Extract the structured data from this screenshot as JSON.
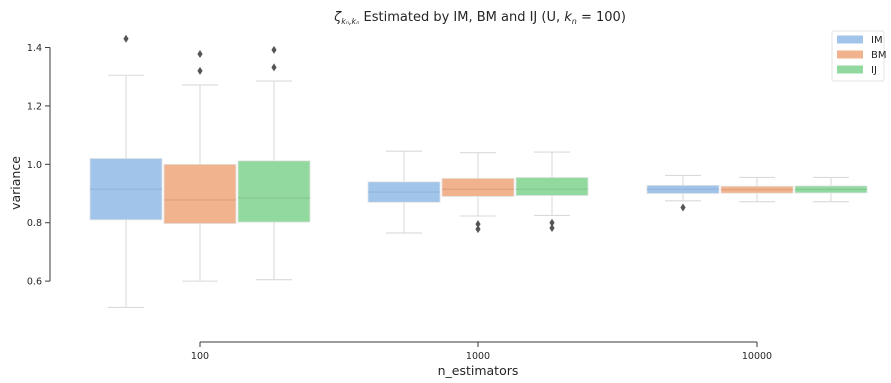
{
  "chart_data": {
    "type": "boxplot",
    "title": "ζ_{k_n,k_n} Estimated by IM, BM and IJ (U, k_n = 100)",
    "title_parts": {
      "zeta": "ζ",
      "zeta_sub": "kₙ,kₙ",
      "text_middle": " Estimated by IM, BM and IJ (U, ",
      "kn_italic": "k",
      "kn_sub": "n",
      "text_end": " = 100)"
    },
    "xlabel": "n_estimators",
    "ylabel": "variance",
    "categories": [
      "100",
      "1000",
      "10000"
    ],
    "ylim": [
      0.46,
      1.46
    ],
    "yticks": [
      0.6,
      0.8,
      1.0,
      1.2,
      1.4
    ],
    "ytick_labels": [
      "0.6",
      "0.8",
      "1.0",
      "1.2",
      "1.4"
    ],
    "grid": false,
    "legend_position": "top-right",
    "series": [
      {
        "name": "IM",
        "color": "#a1c4ea",
        "median_color": "#93b6db",
        "boxes": [
          {
            "whisker_low": 0.51,
            "q1": 0.81,
            "median": 0.915,
            "q3": 1.02,
            "whisker_high": 1.305,
            "outliers": [
              1.43
            ]
          },
          {
            "whisker_low": 0.765,
            "q1": 0.87,
            "median": 0.905,
            "q3": 0.94,
            "whisker_high": 1.045,
            "outliers": []
          },
          {
            "whisker_low": 0.875,
            "q1": 0.9,
            "median": 0.915,
            "q3": 0.928,
            "whisker_high": 0.962,
            "outliers": [
              0.852
            ]
          }
        ]
      },
      {
        "name": "BM",
        "color": "#f1b38e",
        "median_color": "#dfa07c",
        "boxes": [
          {
            "whisker_low": 0.6,
            "q1": 0.797,
            "median": 0.878,
            "q3": 1.0,
            "whisker_high": 1.272,
            "outliers": [
              1.32,
              1.378
            ]
          },
          {
            "whisker_low": 0.823,
            "q1": 0.89,
            "median": 0.915,
            "q3": 0.952,
            "whisker_high": 1.04,
            "outliers": [
              0.778,
              0.795
            ]
          },
          {
            "whisker_low": 0.872,
            "q1": 0.901,
            "median": 0.913,
            "q3": 0.925,
            "whisker_high": 0.955,
            "outliers": []
          }
        ]
      },
      {
        "name": "IJ",
        "color": "#92d9a0",
        "median_color": "#82c891",
        "boxes": [
          {
            "whisker_low": 0.605,
            "q1": 0.802,
            "median": 0.885,
            "q3": 1.012,
            "whisker_high": 1.285,
            "outliers": [
              1.332,
              1.392
            ]
          },
          {
            "whisker_low": 0.825,
            "q1": 0.893,
            "median": 0.915,
            "q3": 0.955,
            "whisker_high": 1.042,
            "outliers": [
              0.782,
              0.8
            ]
          },
          {
            "whisker_low": 0.872,
            "q1": 0.902,
            "median": 0.914,
            "q3": 0.926,
            "whisker_high": 0.955,
            "outliers": []
          }
        ]
      }
    ]
  }
}
